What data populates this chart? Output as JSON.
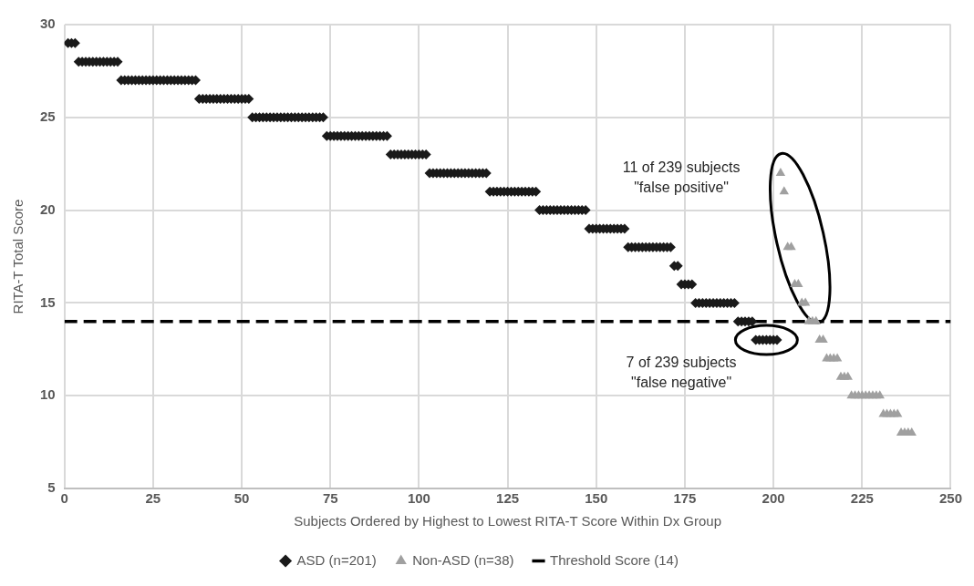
{
  "chart_data": {
    "type": "scatter",
    "xlabel": "Subjects Ordered by Highest to Lowest RITA-T Score Within Dx Group",
    "ylabel": "RITA-T Total Score",
    "xlim": [
      0,
      250
    ],
    "xticks": [
      0,
      25,
      50,
      75,
      100,
      125,
      150,
      175,
      200,
      225,
      250
    ],
    "ylim": [
      5,
      30
    ],
    "yticks": [
      5,
      10,
      15,
      20,
      25,
      30
    ],
    "grid": true,
    "legend": "bottom",
    "ref_lines": [
      {
        "axis": "y",
        "value": 14,
        "label": "Threshold Score (14)",
        "color": "#000000",
        "line_style": "dashed"
      }
    ],
    "series": [
      {
        "name": "ASD (n=201)",
        "color": "#1a1a1a",
        "marker": "diamond",
        "x": [
          1,
          2,
          3,
          4,
          5,
          6,
          7,
          8,
          9,
          10,
          11,
          12,
          13,
          14,
          15,
          16,
          17,
          18,
          19,
          20,
          21,
          22,
          23,
          24,
          25,
          26,
          27,
          28,
          29,
          30,
          31,
          32,
          33,
          34,
          35,
          36,
          37,
          38,
          39,
          40,
          41,
          42,
          43,
          44,
          45,
          46,
          47,
          48,
          49,
          50,
          51,
          52,
          53,
          54,
          55,
          56,
          57,
          58,
          59,
          60,
          61,
          62,
          63,
          64,
          65,
          66,
          67,
          68,
          69,
          70,
          71,
          72,
          73,
          74,
          75,
          76,
          77,
          78,
          79,
          80,
          81,
          82,
          83,
          84,
          85,
          86,
          87,
          88,
          89,
          90,
          91,
          92,
          93,
          94,
          95,
          96,
          97,
          98,
          99,
          100,
          101,
          102,
          103,
          104,
          105,
          106,
          107,
          108,
          109,
          110,
          111,
          112,
          113,
          114,
          115,
          116,
          117,
          118,
          119,
          120,
          121,
          122,
          123,
          124,
          125,
          126,
          127,
          128,
          129,
          130,
          131,
          132,
          133,
          134,
          135,
          136,
          137,
          138,
          139,
          140,
          141,
          142,
          143,
          144,
          145,
          146,
          147,
          148,
          149,
          150,
          151,
          152,
          153,
          154,
          155,
          156,
          157,
          158,
          159,
          160,
          161,
          162,
          163,
          164,
          165,
          166,
          167,
          168,
          169,
          170,
          171,
          172,
          173,
          174,
          175,
          176,
          177,
          178,
          179,
          180,
          181,
          182,
          183,
          184,
          185,
          186,
          187,
          188,
          189,
          190,
          191,
          192,
          193,
          194,
          195,
          196,
          197,
          198,
          199,
          200,
          201
        ],
        "values": [
          29,
          29,
          29,
          28,
          28,
          28,
          28,
          28,
          28,
          28,
          28,
          28,
          28,
          28,
          28,
          27,
          27,
          27,
          27,
          27,
          27,
          27,
          27,
          27,
          27,
          27,
          27,
          27,
          27,
          27,
          27,
          27,
          27,
          27,
          27,
          27,
          27,
          26,
          26,
          26,
          26,
          26,
          26,
          26,
          26,
          26,
          26,
          26,
          26,
          26,
          26,
          26,
          25,
          25,
          25,
          25,
          25,
          25,
          25,
          25,
          25,
          25,
          25,
          25,
          25,
          25,
          25,
          25,
          25,
          25,
          25,
          25,
          25,
          24,
          24,
          24,
          24,
          24,
          24,
          24,
          24,
          24,
          24,
          24,
          24,
          24,
          24,
          24,
          24,
          24,
          24,
          23,
          23,
          23,
          23,
          23,
          23,
          23,
          23,
          23,
          23,
          23,
          22,
          22,
          22,
          22,
          22,
          22,
          22,
          22,
          22,
          22,
          22,
          22,
          22,
          22,
          22,
          22,
          22,
          21,
          21,
          21,
          21,
          21,
          21,
          21,
          21,
          21,
          21,
          21,
          21,
          21,
          21,
          20,
          20,
          20,
          20,
          20,
          20,
          20,
          20,
          20,
          20,
          20,
          20,
          20,
          20,
          19,
          19,
          19,
          19,
          19,
          19,
          19,
          19,
          19,
          19,
          19,
          18,
          18,
          18,
          18,
          18,
          18,
          18,
          18,
          18,
          18,
          18,
          18,
          18,
          17,
          17,
          16,
          16,
          16,
          16,
          15,
          15,
          15,
          15,
          15,
          15,
          15,
          15,
          15,
          15,
          15,
          15,
          14,
          14,
          14,
          14,
          14,
          13,
          13,
          13,
          13,
          13,
          13,
          13
        ]
      },
      {
        "name": "Non-ASD (n=38)",
        "color": "#a0a0a0",
        "marker": "triangle",
        "x": [
          202,
          203,
          204,
          205,
          206,
          207,
          208,
          209,
          210,
          211,
          212,
          213,
          214,
          215,
          216,
          217,
          218,
          219,
          220,
          221,
          222,
          223,
          224,
          225,
          226,
          227,
          228,
          229,
          230,
          231,
          232,
          233,
          234,
          235,
          236,
          237,
          238,
          239
        ],
        "values": [
          22,
          21,
          18,
          18,
          16,
          16,
          15,
          15,
          14,
          14,
          14,
          13,
          13,
          12,
          12,
          12,
          12,
          11,
          11,
          11,
          10,
          10,
          10,
          10,
          10,
          10,
          10,
          10,
          10,
          9,
          9,
          9,
          9,
          9,
          8,
          8,
          8,
          8
        ]
      }
    ],
    "annotations": [
      "11 of 239 subjects\n\"false positive\"",
      "7 of 239 subjects\n\"false negative\""
    ]
  }
}
